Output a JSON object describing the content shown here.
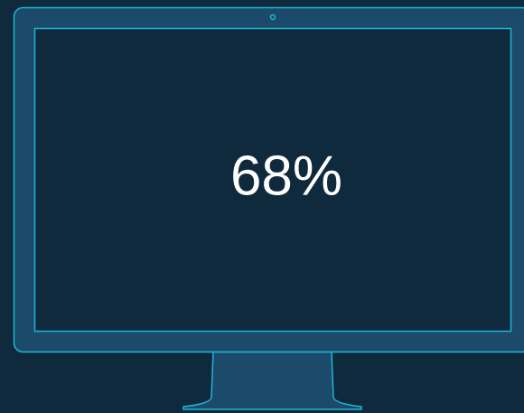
{
  "display": {
    "text": "68%"
  }
}
